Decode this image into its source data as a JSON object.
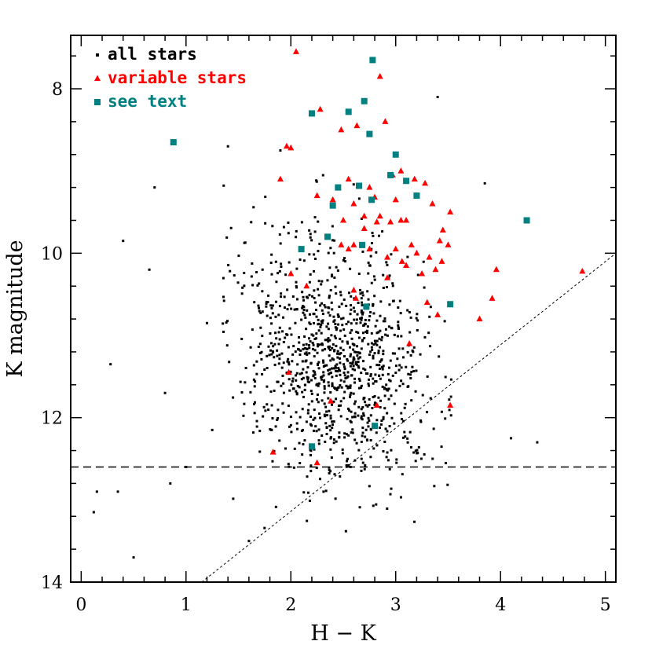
{
  "chart_data": {
    "type": "scatter",
    "xlabel": "H − K",
    "ylabel": "K magnitude",
    "xlim": [
      -0.1,
      5.1
    ],
    "ylim": [
      14,
      7.35
    ],
    "y_inverted": true,
    "xticks": [
      "0",
      "1",
      "2",
      "3",
      "4",
      "5"
    ],
    "yticks": [
      "8",
      "10",
      "12",
      "14"
    ],
    "xtick_values": [
      0,
      1,
      2,
      3,
      4,
      5
    ],
    "ytick_values": [
      8,
      10,
      12,
      14
    ],
    "grid": false,
    "legend_position": "top-left",
    "reference_lines": [
      {
        "type": "horizontal",
        "y": 12.6,
        "style": "dashed"
      },
      {
        "type": "diagonal",
        "from": [
          1.15,
          14.0
        ],
        "to": [
          5.1,
          10.0
        ],
        "style": "dotted"
      }
    ],
    "series": [
      {
        "name": "all stars",
        "marker": "dot",
        "color": "#000000",
        "points_generated": 1100,
        "x_center": 2.4,
        "x_spread": 0.45,
        "y_center": 11.3,
        "y_spread": 0.75,
        "x": [
          0.15,
          0.4,
          0.5,
          0.7,
          0.8,
          0.85,
          1.0,
          1.2,
          1.25,
          1.4,
          0.28,
          0.65,
          0.12,
          1.6,
          0.35,
          1.9,
          3.4,
          3.85,
          4.1,
          4.35
        ],
        "y": [
          12.9,
          9.85,
          13.7,
          9.2,
          11.7,
          12.8,
          12.6,
          10.85,
          12.15,
          8.7,
          11.35,
          10.2,
          13.15,
          13.5,
          12.9,
          8.75,
          8.1,
          9.15,
          12.25,
          12.3
        ]
      },
      {
        "name": "variable stars",
        "marker": "triangle",
        "color": "#ff0000",
        "x": [
          2.05,
          2.85,
          2.28,
          2.9,
          2.63,
          2.48,
          1.96,
          2.0,
          1.9,
          2.55,
          2.75,
          2.97,
          3.05,
          3.18,
          3.28,
          3.35,
          2.25,
          2.4,
          2.6,
          2.8,
          3.0,
          3.2,
          3.52,
          2.5,
          2.7,
          2.85,
          3.05,
          2.7,
          2.82,
          2.95,
          3.1,
          3.45,
          2.48,
          2.55,
          2.6,
          2.75,
          3.0,
          3.15,
          3.42,
          3.5,
          2.92,
          3.06,
          3.2,
          3.32,
          3.44,
          3.1,
          3.25,
          3.38,
          2.62,
          2.92,
          3.8,
          3.92,
          3.96,
          4.78,
          2.0,
          2.15,
          2.6,
          3.3,
          1.98,
          3.13,
          2.38,
          2.82,
          3.52,
          2.25,
          1.83,
          3.4
        ],
        "y": [
          7.55,
          7.85,
          8.25,
          8.4,
          8.45,
          8.5,
          8.7,
          8.72,
          9.1,
          9.1,
          9.2,
          9.05,
          9.0,
          9.1,
          9.15,
          9.4,
          9.3,
          9.35,
          9.4,
          9.32,
          9.35,
          9.3,
          9.5,
          9.6,
          9.55,
          9.55,
          9.6,
          9.7,
          9.62,
          9.62,
          9.6,
          9.72,
          9.9,
          9.95,
          9.9,
          9.95,
          9.95,
          9.9,
          9.85,
          9.9,
          10.05,
          10.1,
          10.0,
          10.05,
          10.1,
          10.15,
          10.25,
          10.2,
          10.55,
          10.3,
          10.8,
          10.55,
          10.2,
          10.22,
          10.25,
          10.4,
          10.45,
          10.6,
          11.45,
          11.1,
          11.8,
          11.85,
          11.85,
          12.55,
          12.42,
          10.75
        ]
      },
      {
        "name": "see text",
        "marker": "square",
        "color": "#008080",
        "x": [
          0.88,
          2.2,
          2.55,
          2.7,
          2.75,
          2.78,
          3.0,
          2.45,
          2.65,
          2.95,
          3.1,
          3.2,
          2.4,
          2.77,
          2.35,
          2.1,
          2.68,
          2.72,
          4.25,
          3.52,
          2.8,
          2.2
        ],
        "y": [
          8.65,
          8.3,
          8.28,
          8.15,
          8.55,
          7.65,
          8.8,
          9.2,
          9.18,
          9.05,
          9.12,
          9.3,
          9.42,
          9.35,
          9.8,
          9.95,
          9.9,
          10.65,
          9.6,
          10.62,
          12.1,
          12.35
        ]
      }
    ]
  }
}
